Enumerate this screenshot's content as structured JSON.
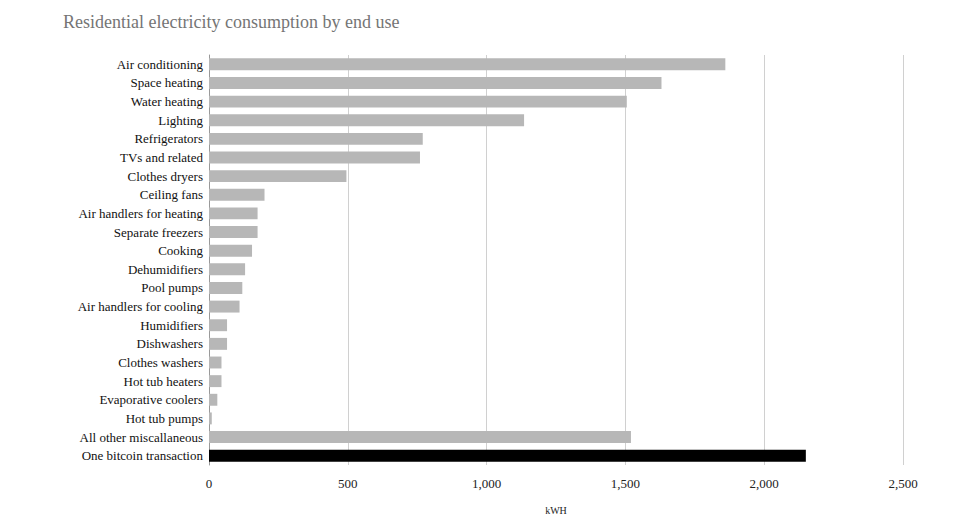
{
  "chart_data": {
    "type": "bar",
    "orientation": "horizontal",
    "title": "Residential electricity consumption by end use",
    "xlabel": "kWH",
    "categories": [
      "Air conditioning",
      "Space heating",
      "Water heating",
      "Lighting",
      "Refrigerators",
      "TVs and related",
      "Clothes dryers",
      "Ceiling fans",
      "Air handlers for heating",
      "Separate freezers",
      "Cooking",
      "Dehumidifiers",
      "Pool pumps",
      "Air handlers for cooling",
      "Humidifiers",
      "Dishwashers",
      "Clothes washers",
      "Hot tub heaters",
      "Evaporative coolers",
      "Hot tub pumps",
      "All other miscallaneous",
      "One bitcoin transaction"
    ],
    "values": [
      1860,
      1630,
      1505,
      1135,
      770,
      760,
      495,
      200,
      175,
      175,
      155,
      130,
      120,
      110,
      65,
      65,
      45,
      45,
      30,
      10,
      1520,
      2150
    ],
    "colors": [
      "#b7b7b7",
      "#b7b7b7",
      "#b7b7b7",
      "#b7b7b7",
      "#b7b7b7",
      "#b7b7b7",
      "#b7b7b7",
      "#b7b7b7",
      "#b7b7b7",
      "#b7b7b7",
      "#b7b7b7",
      "#b7b7b7",
      "#b7b7b7",
      "#b7b7b7",
      "#b7b7b7",
      "#b7b7b7",
      "#b7b7b7",
      "#b7b7b7",
      "#b7b7b7",
      "#b7b7b7",
      "#b7b7b7",
      "#000000"
    ],
    "xlim": [
      0,
      2500
    ],
    "xticks": [
      0,
      500,
      {
        "value": 1000,
        "label": "1,000"
      },
      {
        "value": 1500,
        "label": "1,500"
      },
      {
        "value": 2000,
        "label": "2,000"
      },
      {
        "value": 2500,
        "label": "2,500"
      }
    ],
    "grid": true
  }
}
